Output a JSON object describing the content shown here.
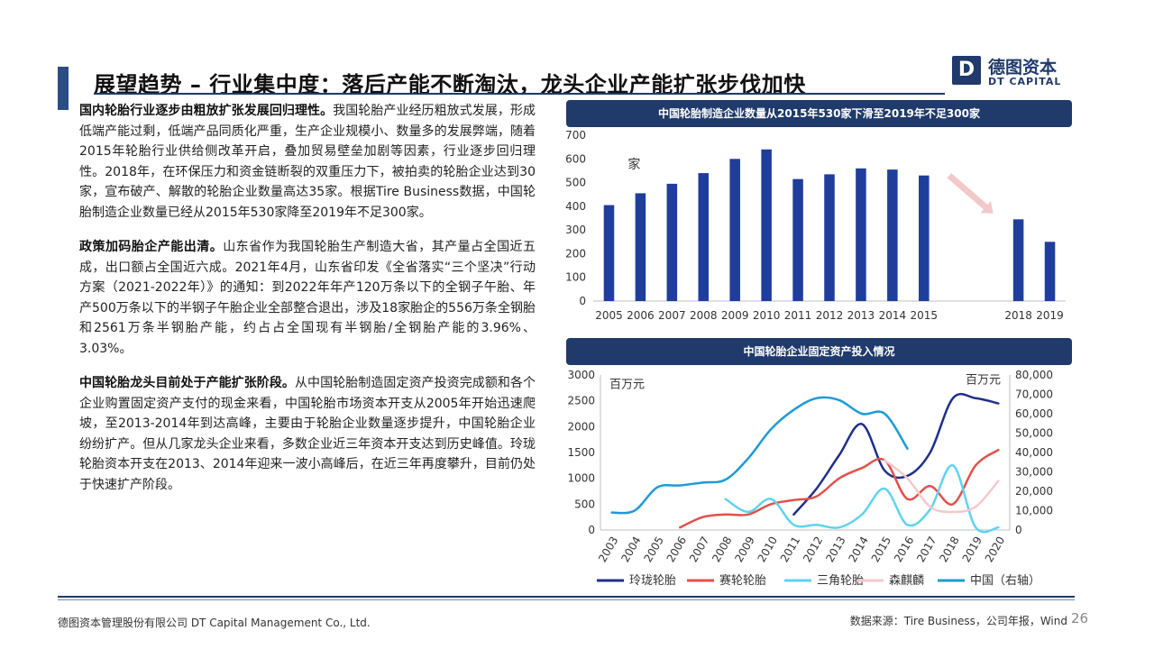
{
  "header": {
    "title": "展望趋势 – 行业集中度：落后产能不断淘汰，龙头企业产能扩张步伐加快",
    "logo_cn": "德图资本",
    "logo_en": "DT CAPITAL",
    "logo_mark": "D"
  },
  "paragraphs": [
    {
      "lead": "国内轮胎行业逐步由粗放扩张发展回归理性。",
      "body": "我国轮胎产业经历粗放式发展，形成低端产能过剩，低端产品同质化严重，生产企业规模小、数量多的发展弊端，随着2015年轮胎行业供给侧改革开启，叠加贸易壁垒加剧等因素，行业逐步回归理性。2018年，在环保压力和资金链断裂的双重压力下，被拍卖的轮胎企业达到30家，宣布破产、解散的轮胎企业数量高达35家。根据Tire Business数据，中国轮胎制造企业数量已经从2015年530家降至2019年不足300家。"
    },
    {
      "lead": "政策加码胎企产能出清。",
      "body": "山东省作为我国轮胎生产制造大省，其产量占全国近五成，出口额占全国近六成。2021年4月，山东省印发《全省落实“三个坚决”行动方案（2021-2022年）》的通知：到2022年年产120万条以下的全钢子午胎、年产500万条以下的半钢子午胎企业全部整合退出，涉及18家胎企的556万条全钢胎和2561万条半钢胎产能，约占占全国现有半钢胎/全钢胎产能的3.96%、3.03%。"
    },
    {
      "lead": "中国轮胎龙头目前处于产能扩张阶段。",
      "body": "从中国轮胎制造固定资产投资完成额和各个企业购置固定资产支付的现金来看，中国轮胎市场资本开支从2005年开始迅速爬坡，至2013-2014年到达高峰，主要由于轮胎企业数量逐步提升，中国轮胎企业纷纷扩产。但从几家龙头企业来看，多数企业近三年资本开支达到历史峰值。玲珑轮胎资本开支在2013、2014年迎来一波小高峰后，在近三年再度攀升，目前仍处于快速扩产阶段。"
    }
  ],
  "chart_data": [
    {
      "type": "bar",
      "title": "中国轮胎制造企业数量从2015年530家下滑至2019年不足300家",
      "unit_label": "家",
      "categories": [
        "2005",
        "2006",
        "2007",
        "2008",
        "2009",
        "2010",
        "2011",
        "2012",
        "2013",
        "2014",
        "2015",
        "",
        "",
        "2018",
        "2019"
      ],
      "values": [
        405,
        455,
        495,
        540,
        600,
        640,
        515,
        535,
        560,
        555,
        530,
        null,
        null,
        345,
        250
      ],
      "ylim": [
        0,
        700
      ],
      "yticks": [
        0,
        100,
        200,
        300,
        400,
        500,
        600,
        700
      ],
      "bar_color": "#1f3e9c",
      "arrow_color": "#f2c9c9"
    },
    {
      "type": "line",
      "title": "中国轮胎企业固定资产投入情况",
      "left_unit": "百万元",
      "right_unit": "百万元",
      "x": [
        "2003",
        "2004",
        "2005",
        "2006",
        "2007",
        "2008",
        "2009",
        "2010",
        "2011",
        "2012",
        "2013",
        "2014",
        "2015",
        "2016",
        "2017",
        "2018",
        "2019",
        "2020"
      ],
      "ylim_left": [
        0,
        3000
      ],
      "yticks_left": [
        0,
        500,
        1000,
        1500,
        2000,
        2500,
        3000
      ],
      "ylim_right": [
        0,
        80000
      ],
      "yticks_right": [
        "0",
        "10,000",
        "20,000",
        "30,000",
        "40,000",
        "50,000",
        "60,000",
        "70,000",
        "80,000"
      ],
      "yticks_right_values": [
        0,
        10000,
        20000,
        30000,
        40000,
        50000,
        60000,
        70000,
        80000
      ],
      "series": [
        {
          "name": "玲珑轮胎",
          "axis": "left",
          "color": "#1f2f8a",
          "values": [
            null,
            null,
            null,
            null,
            null,
            null,
            null,
            null,
            300,
            800,
            1450,
            2050,
            1150,
            1050,
            1500,
            2550,
            2550,
            2450
          ]
        },
        {
          "name": "赛轮轮胎",
          "axis": "left",
          "color": "#e0514a",
          "values": [
            null,
            null,
            null,
            50,
            250,
            300,
            300,
            500,
            580,
            650,
            1000,
            1200,
            1350,
            600,
            850,
            500,
            1250,
            1550
          ]
        },
        {
          "name": "三角轮胎",
          "axis": "left",
          "color": "#5fd3ee",
          "values": [
            null,
            null,
            null,
            null,
            null,
            600,
            350,
            600,
            100,
            100,
            50,
            300,
            800,
            100,
            400,
            1250,
            50,
            50
          ]
        },
        {
          "name": "森麒麟",
          "axis": "left",
          "color": "#f3c9cd",
          "values": [
            null,
            null,
            null,
            null,
            null,
            null,
            null,
            null,
            null,
            null,
            null,
            null,
            1350,
            1000,
            450,
            350,
            450,
            950
          ]
        },
        {
          "name": "中国（右轴）",
          "axis": "right",
          "color": "#1e9ad6",
          "values": [
            9000,
            10000,
            22000,
            23000,
            24500,
            26000,
            37000,
            52000,
            62000,
            68000,
            67000,
            60000,
            60000,
            42000,
            null,
            null,
            null,
            null
          ]
        }
      ]
    }
  ],
  "footer": {
    "company": "德图资本管理股份有限公司 DT Capital Management Co., Ltd.",
    "source": "数据来源：Tire Business，公司年报，Wind",
    "page": "26"
  }
}
